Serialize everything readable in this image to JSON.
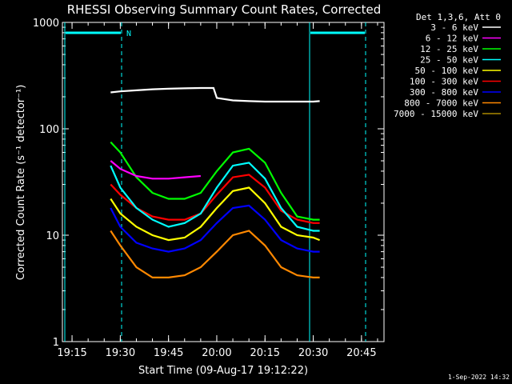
{
  "chart_data": {
    "type": "line",
    "title": "RHESSI Observing Summary Count Rates, Corrected",
    "xlabel": "Start Time (09-Aug-17 19:12:22)",
    "ylabel": "Corrected Count Rate (s⁻¹ detector⁻¹)",
    "xlim": [
      "19:12",
      "20:52"
    ],
    "ylim": [
      1,
      1000
    ],
    "yscale": "log",
    "x_ticks": [
      "19:15",
      "19:30",
      "19:45",
      "20:00",
      "20:15",
      "20:30",
      "20:45"
    ],
    "y_ticks": [
      "1",
      "10",
      "100",
      "1000"
    ],
    "legend_header": "Det 1,3,6, Att 0",
    "legend_position": "top-right",
    "series": [
      {
        "name": "3 - 6 keV",
        "color": "#ffffff",
        "x": [
          "19:27",
          "19:30",
          "19:35",
          "19:40",
          "19:45",
          "19:50",
          "19:55",
          "19:59",
          "20:00",
          "20:05",
          "20:10",
          "20:15",
          "20:20",
          "20:25",
          "20:30",
          "20:32"
        ],
        "y": [
          220,
          225,
          230,
          235,
          238,
          240,
          242,
          242,
          195,
          185,
          182,
          180,
          180,
          180,
          180,
          182
        ]
      },
      {
        "name": "6 - 12 keV",
        "color": "#ff00ff",
        "x": [
          "19:27",
          "19:30",
          "19:35",
          "19:40",
          "19:45",
          "19:50",
          "19:55"
        ],
        "y": [
          50,
          42,
          36,
          34,
          34,
          35,
          36
        ]
      },
      {
        "name": "12 - 25 keV",
        "color": "#00ff00",
        "x": [
          "19:27",
          "19:30",
          "19:35",
          "19:40",
          "19:45",
          "19:50",
          "19:55",
          "20:00",
          "20:05",
          "20:10",
          "20:15",
          "20:20",
          "20:25",
          "20:30",
          "20:32"
        ],
        "y": [
          75,
          60,
          35,
          25,
          22,
          22,
          25,
          40,
          60,
          65,
          48,
          25,
          15,
          14,
          14
        ]
      },
      {
        "name": "25 - 50 keV",
        "color": "#00ffff",
        "x": [
          "19:27",
          "19:30",
          "19:35",
          "19:40",
          "19:45",
          "19:50",
          "19:55",
          "20:00",
          "20:05",
          "20:10",
          "20:15",
          "20:20",
          "20:25",
          "20:30",
          "20:32"
        ],
        "y": [
          45,
          28,
          18,
          14,
          12,
          13,
          16,
          28,
          45,
          48,
          34,
          18,
          12,
          11,
          11
        ]
      },
      {
        "name": "50 - 100 keV",
        "color": "#ffff00",
        "x": [
          "19:27",
          "19:30",
          "19:35",
          "19:40",
          "19:45",
          "19:50",
          "19:55",
          "20:00",
          "20:05",
          "20:10",
          "20:15",
          "20:20",
          "20:25",
          "20:30",
          "20:32"
        ],
        "y": [
          22,
          16,
          12,
          10,
          9,
          9.5,
          12,
          18,
          26,
          28,
          20,
          12,
          10,
          9.5,
          9
        ]
      },
      {
        "name": "100 - 300 keV",
        "color": "#ff0000",
        "x": [
          "19:27",
          "19:30",
          "19:35",
          "19:40",
          "19:45",
          "19:50",
          "19:55",
          "20:00",
          "20:05",
          "20:10",
          "20:15",
          "20:20",
          "20:25",
          "20:30",
          "20:32"
        ],
        "y": [
          30,
          24,
          18,
          15,
          14,
          14,
          16,
          24,
          35,
          37,
          28,
          17,
          14,
          13,
          13
        ]
      },
      {
        "name": "300 - 800 keV",
        "color": "#0000ff",
        "x": [
          "19:27",
          "19:30",
          "19:35",
          "19:40",
          "19:45",
          "19:50",
          "19:55",
          "20:00",
          "20:05",
          "20:10",
          "20:15",
          "20:20",
          "20:25",
          "20:30",
          "20:32"
        ],
        "y": [
          18,
          12,
          8.5,
          7.5,
          7,
          7.5,
          9,
          13,
          18,
          19,
          14,
          9,
          7.5,
          7,
          7
        ]
      },
      {
        "name": "800 - 7000 keV",
        "color": "#ff8800",
        "x": [
          "19:27",
          "19:30",
          "19:35",
          "19:40",
          "19:45",
          "19:50",
          "19:55",
          "20:00",
          "20:05",
          "20:10",
          "20:15",
          "20:20",
          "20:25",
          "20:30",
          "20:32"
        ],
        "y": [
          11,
          8,
          5,
          4,
          4,
          4.2,
          5,
          7,
          10,
          11,
          8,
          5,
          4.2,
          4,
          4
        ]
      },
      {
        "name": "7000 - 15000 keV",
        "color": "#aa8800",
        "x": [],
        "y": []
      }
    ],
    "annotations": [
      {
        "text": "N",
        "color": "#00ffff"
      }
    ],
    "footer": "1-Sep-2022 14:32"
  }
}
